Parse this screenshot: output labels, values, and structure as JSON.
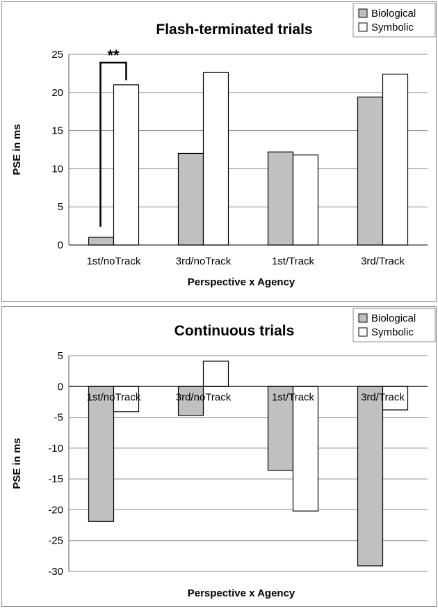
{
  "chart_data": [
    {
      "type": "bar",
      "title": "Flash-terminated trials",
      "xlabel": "Perspective x Agency",
      "ylabel": "PSE in ms",
      "categories": [
        "1st/noTrack",
        "3rd/noTrack",
        "1st/Track",
        "3rd/Track"
      ],
      "series": [
        {
          "name": "Biological",
          "values": [
            1.0,
            12.0,
            12.2,
            19.4
          ],
          "color": "#c0c0c0"
        },
        {
          "name": "Symbolic",
          "values": [
            21.0,
            22.6,
            11.8,
            22.4
          ],
          "color": "#ffffff"
        }
      ],
      "ylim": [
        0,
        25
      ],
      "yticks": [
        0,
        5,
        10,
        15,
        20,
        25
      ],
      "grid": true,
      "legend": "top-right",
      "annotation": "**"
    },
    {
      "type": "bar",
      "title": "Continuous trials",
      "xlabel": "Perspective x Agency",
      "ylabel": "PSE in ms",
      "categories": [
        "1st/noTrack",
        "3rd/noTrack",
        "1st/Track",
        "3rd/Track"
      ],
      "series": [
        {
          "name": "Biological",
          "values": [
            -21.9,
            -4.7,
            -13.6,
            -29.1
          ],
          "color": "#c0c0c0"
        },
        {
          "name": "Symbolic",
          "values": [
            -4.1,
            4.1,
            -20.2,
            -3.8
          ],
          "color": "#ffffff"
        }
      ],
      "ylim": [
        -30,
        5
      ],
      "yticks": [
        -30,
        -25,
        -20,
        -15,
        -10,
        -5,
        0,
        5
      ],
      "grid": true,
      "legend": "top-right"
    }
  ]
}
